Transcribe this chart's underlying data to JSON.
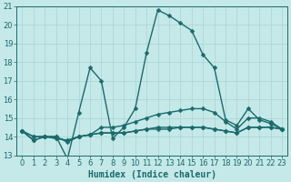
{
  "xlabel": "Humidex (Indice chaleur)",
  "background_color": "#c5e8e8",
  "grid_color": "#a8d4d4",
  "line_color": "#1a6b6b",
  "xlim": [
    -0.5,
    23.5
  ],
  "ylim": [
    13,
    21
  ],
  "xticks": [
    0,
    1,
    2,
    3,
    4,
    5,
    6,
    7,
    8,
    9,
    10,
    11,
    12,
    13,
    14,
    15,
    16,
    17,
    18,
    19,
    20,
    21,
    22,
    23
  ],
  "yticks": [
    13,
    14,
    15,
    16,
    17,
    18,
    19,
    20,
    21
  ],
  "series1": [
    14.3,
    13.8,
    14.0,
    14.0,
    12.8,
    15.3,
    17.7,
    17.0,
    13.9,
    14.5,
    15.5,
    18.5,
    20.8,
    20.5,
    20.1,
    19.7,
    18.4,
    17.7,
    14.9,
    14.6,
    15.5,
    14.9,
    14.7,
    14.4
  ],
  "series2": [
    14.3,
    13.8,
    14.0,
    14.0,
    13.7,
    14.0,
    14.1,
    14.5,
    14.5,
    14.6,
    14.8,
    15.0,
    15.2,
    15.3,
    15.4,
    15.5,
    15.5,
    15.3,
    14.8,
    14.4,
    15.0,
    15.0,
    14.8,
    14.4
  ],
  "series3": [
    14.3,
    14.0,
    14.0,
    13.9,
    13.8,
    14.0,
    14.1,
    14.2,
    14.2,
    14.2,
    14.3,
    14.4,
    14.5,
    14.5,
    14.5,
    14.5,
    14.5,
    14.4,
    14.3,
    14.2,
    14.5,
    14.5,
    14.5,
    14.4
  ],
  "series4": [
    14.3,
    14.0,
    14.0,
    13.9,
    13.8,
    14.0,
    14.1,
    14.2,
    14.2,
    14.2,
    14.3,
    14.4,
    14.4,
    14.4,
    14.5,
    14.5,
    14.5,
    14.4,
    14.3,
    14.2,
    14.5,
    14.5,
    14.5,
    14.4
  ],
  "marker": "D",
  "markersize": 2.5,
  "linewidth": 1.0,
  "fontsize_ticks": 6,
  "fontsize_xlabel": 7
}
